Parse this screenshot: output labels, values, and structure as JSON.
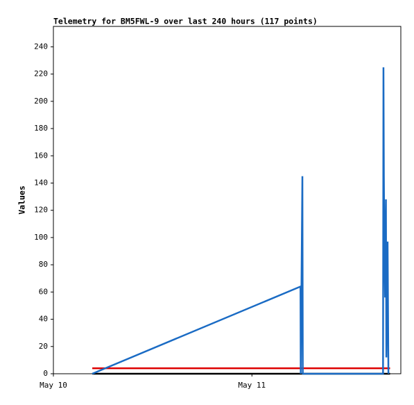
{
  "chart_data": {
    "type": "line",
    "title": "Telemetry for BM5FWL-9 over last 240 hours (117 points)",
    "y_label": "Values",
    "xlim": [
      0,
      42
    ],
    "xticks": [
      {
        "value": 0,
        "label": "May 10"
      },
      {
        "value": 24,
        "label": "May 11"
      }
    ],
    "ylim": [
      0,
      255
    ],
    "yticks": [
      0,
      20,
      40,
      60,
      80,
      100,
      120,
      140,
      160,
      180,
      200,
      220,
      240
    ],
    "series": [
      {
        "color": "#000000",
        "x": [
          4.7,
          40.7
        ],
        "values": [
          0,
          0
        ]
      },
      {
        "color": "#dd0000",
        "x": [
          4.7,
          40.7
        ],
        "values": [
          4,
          4
        ]
      },
      {
        "color": "#1a6bc4",
        "x": [
          4.7,
          29.87,
          29.9,
          30.1,
          30.15,
          39.85,
          39.9,
          39.95,
          40.0,
          40.05,
          40.1,
          40.2,
          40.25,
          40.4,
          40.5
        ],
        "values": [
          0,
          64,
          0,
          145,
          0,
          0,
          225,
          145,
          100,
          79,
          56,
          128,
          12,
          97,
          0
        ]
      }
    ]
  }
}
